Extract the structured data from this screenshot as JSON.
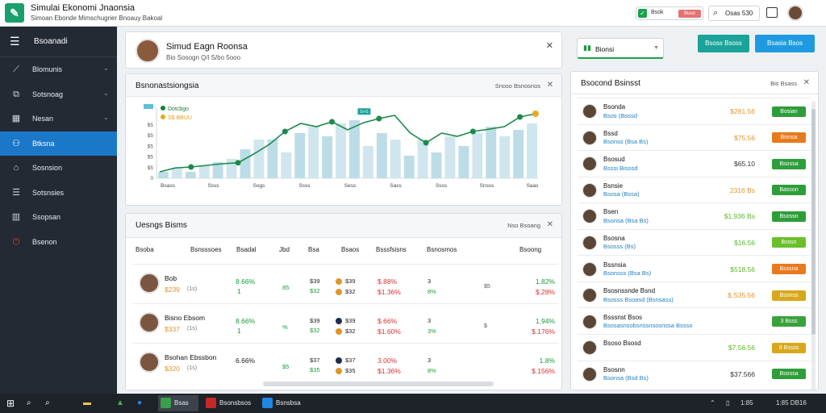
{
  "app": {
    "title": "Simulai Ekonomi Jnaonsia",
    "subtitle": "Simoan Ebonde Mimschugrier Bnoauy Bakoal"
  },
  "titlebar": {
    "pill_label": "Bsok",
    "pill_badge": "Buso",
    "search_label": "Osas 530"
  },
  "sidebar": {
    "header": "Bsoanadi",
    "items": [
      {
        "label": "Blomunis",
        "icon": "chart-icon",
        "chevron": true
      },
      {
        "label": "Sotsnoag",
        "icon": "layers-icon",
        "chevron": true
      },
      {
        "label": "Nesan",
        "icon": "grid-icon",
        "chevron": true
      },
      {
        "label": "Btksna",
        "icon": "user-icon",
        "chevron": false,
        "active": true
      },
      {
        "label": "Sosnsion",
        "icon": "home-icon",
        "chevron": false
      },
      {
        "label": "Sotsnsies",
        "icon": "list-icon",
        "chevron": false
      },
      {
        "label": "Ssopsan",
        "icon": "building-icon",
        "chevron": false
      },
      {
        "label": "Bsenon",
        "icon": "power-icon",
        "chevron": false
      }
    ]
  },
  "profile": {
    "name": "Simud Eagn Roonsa",
    "sub": "Bio Sosogn  Q/l  S/bo 5ooo"
  },
  "market_chart": {
    "header": "Bsnonastsiongsia",
    "action": "Snoso Bsnosnos",
    "legend": [
      {
        "label": "Dotcbgo",
        "color": "#1b7f3a"
      },
      {
        "label": "S$ BBUU",
        "color": "#e8a820"
      }
    ]
  },
  "chart_data": {
    "type": "bar",
    "categories": [
      "Bsass",
      "Ssss",
      "Sogs",
      "Ssss",
      "Sess",
      "Sass",
      "Ssss",
      "Snsss",
      "Saas"
    ],
    "yticks": [
      "0",
      "$5",
      "$5",
      "$5",
      "$5",
      "$5"
    ],
    "bars": [
      2,
      3,
      2,
      4,
      5,
      6,
      9,
      12,
      12,
      8,
      14,
      16,
      13,
      17,
      18,
      10,
      14,
      12,
      7,
      12,
      8,
      13,
      10,
      14,
      16,
      13,
      15,
      17
    ],
    "line": [
      2,
      3.2,
      3.5,
      4,
      4.5,
      4.8,
      7.5,
      10.5,
      14.5,
      17,
      16,
      17.5,
      15,
      17.2,
      18.5,
      19.5,
      14,
      11,
      14,
      13,
      14.5,
      15.2,
      16,
      19,
      20
    ],
    "line_points_marked": [
      2,
      5,
      8,
      11,
      14,
      17,
      20,
      23
    ],
    "label_point": {
      "index": 13,
      "text": "S+S"
    },
    "ylim": [
      0,
      22
    ]
  },
  "stocks": {
    "header": "Uesngs Bisms",
    "action": "Nso Bsoang",
    "columns": [
      "Bsoba",
      "Bsnsssoes",
      "Bsadal",
      "Jbd",
      "Bsa",
      "Bsaos",
      "Bsssfsisns",
      "Bsnosmos",
      "Bsoong"
    ],
    "rows": [
      {
        "name": "Bob",
        "price": "$239",
        "price_sub": "(1s)",
        "pct": "8.66%",
        "pct_sub": "1",
        "mid": "85",
        "val1": "$39",
        "val2": "$32",
        "chg": "$.88%",
        "chg2": "$1.36%",
        "small1": "3",
        "small2": "8%",
        "f1": "$5",
        "end1": "1.82%",
        "end2": "$.28%",
        "dot1": "#e0952a",
        "dot2": "#e0952a",
        "pct_color": "green"
      },
      {
        "name": "Bisno Ebsom",
        "price": "$337",
        "price_sub": "(1s)",
        "pct": "8.66%",
        "pct_sub": "1",
        "mid": "%",
        "val1": "$39",
        "val2": "$32",
        "chg": "$.66%",
        "chg2": "$1.60%",
        "small1": "3",
        "small2": "3%",
        "f1": "$",
        "end1": "1.94%",
        "end2": "$.176%",
        "dot1": "#1f2d4d",
        "dot2": "#e0952a",
        "pct_color": "green"
      },
      {
        "name": "Bsohan Ebssbon",
        "price": "$320",
        "price_sub": "(1s)",
        "pct": "6.66%",
        "pct_sub": "",
        "mid": "$5",
        "val1": "$37",
        "val2": "$35",
        "chg": "3.00%",
        "chg2": "$1.36%",
        "small1": "3",
        "small2": "8%",
        "f1": "",
        "end1": "1.8%",
        "end2": "$.156%",
        "dot1": "#1f2d4d",
        "dot2": "#e0952a",
        "pct_color": "black"
      }
    ]
  },
  "right": {
    "dropdown_label": "Bionsi",
    "btn1": "Bsoss Bsoss",
    "btn2": "Bsasia Bsos",
    "list_header": "Bsocond Bsinsst",
    "list_action": "Bis Bsass",
    "items": [
      {
        "name": "Bsonda",
        "sub": "Bsos (Bossd",
        "price": "$281.56",
        "price_color": "#e0952a",
        "tag": "Bosian",
        "tag_color": "#2e9e3a"
      },
      {
        "name": "Bssd",
        "sub": "Bsonss (Bsa Bs)",
        "price": "$75.56",
        "price_color": "#e0952a",
        "tag": "Bisnsa",
        "tag_color": "#e87a1e"
      },
      {
        "name": "Bsosud",
        "sub": "Bsssi Bisosd",
        "price": "$65.10",
        "price_color": "#333333",
        "tag": "Bsossa",
        "tag_color": "#2e9e3a"
      },
      {
        "name": "Bsnsie",
        "sub": "Bsosa (Bssa)",
        "price": "2316 Bs",
        "price_color": "#e0952a",
        "tag": "Basson",
        "tag_color": "#2e9e3a"
      },
      {
        "name": "Bsen",
        "sub": "Bsonsa (Bsa Bs)",
        "price": "$1,936 Bs",
        "price_color": "#5cb82a",
        "tag": "Bsossn",
        "tag_color": "#2e9e3a"
      },
      {
        "name": "Bsosna",
        "sub": "Bsosss (Bs)",
        "price": "$16.56",
        "price_color": "#5cb82a",
        "tag": "Bsssn",
        "tag_color": "#6abf2a"
      },
      {
        "name": "Bssnsia",
        "sub": "Bsonsss (Bsa Bs)",
        "price": "$518.56",
        "price_color": "#5cb82a",
        "tag": "Bsssna",
        "tag_color": "#e87a1e"
      },
      {
        "name": "Bsosnssnde Bsnd",
        "sub": "Bsosss Bsoasd (Bsnsass)",
        "price": "$.S35.56",
        "price_color": "#e0952a",
        "tag": "Bsonss",
        "tag_color": "#d9a81a"
      },
      {
        "name": "Bsssnst Bsos",
        "sub": "Bsosasnsobsnssnsosnssa Bssso",
        "price": "",
        "price_color": "#333333",
        "tag": "3  Bsss",
        "tag_color": "#3aa23a"
      },
      {
        "name": "Bsoso Bsosd",
        "sub": "",
        "price": "$7.56.56",
        "price_color": "#5cb82a",
        "tag": "8  Bssss",
        "tag_color": "#d9a81a"
      },
      {
        "name": "Bsosnn",
        "sub": "Bsonsa (Bsd Bs)",
        "price": "$37.566",
        "price_color": "#333333",
        "tag": "Bsossa",
        "tag_color": "#2e9e3a"
      }
    ]
  },
  "taskbar": {
    "apps": [
      {
        "label": "Bsas",
        "color": "#3b9e4a",
        "active": true
      },
      {
        "label": "Bsonsbsos",
        "color": "#c62828",
        "active": false
      },
      {
        "label": "Bsnsbsa",
        "color": "#1e88e5",
        "active": false
      }
    ],
    "tray_time": "1:85",
    "tray_date": "1:85 DB16"
  }
}
